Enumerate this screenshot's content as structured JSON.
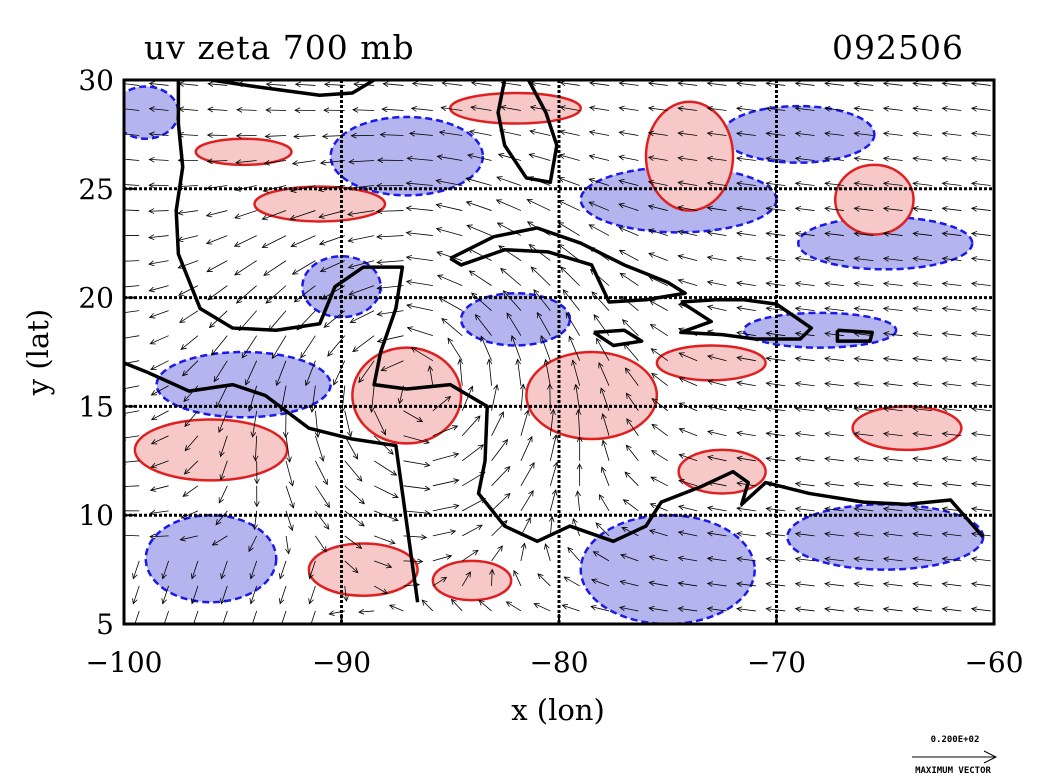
{
  "title_left": "uv zeta 700 mb",
  "title_right": "092506",
  "reference_vector": {
    "magnitude_label": "0.200E+02",
    "caption": "MAXIMUM VECTOR"
  },
  "colors": {
    "positive_vorticity_fill": "#f7c8c8",
    "positive_vorticity_line": "#e02020",
    "negative_vorticity_fill": "#b4b4ee",
    "negative_vorticity_line": "#1a1aee",
    "coastline": "#000000",
    "grid": "#000000",
    "vectors": "#000000"
  },
  "chart_data": {
    "type": "contour",
    "variable": "uv zeta 700 mb",
    "date_code": "092506",
    "xlabel": "x (lon)",
    "ylabel": "y (lat)",
    "xlim": [
      -100,
      -60
    ],
    "ylim": [
      5,
      30
    ],
    "x_ticks": [
      -100,
      -90,
      -80,
      -70,
      -60
    ],
    "y_ticks": [
      5,
      10,
      15,
      20,
      25,
      30
    ],
    "grid": true,
    "overlay": "wind vectors",
    "positive_regions": [
      {
        "lon": -87,
        "lat": 15.5,
        "rx": 2.5,
        "ry": 2.2
      },
      {
        "lon": -96,
        "lat": 13.0,
        "rx": 3.5,
        "ry": 1.4
      },
      {
        "lon": -82,
        "lat": 28.7,
        "rx": 3.0,
        "ry": 0.7
      },
      {
        "lon": -91,
        "lat": 24.3,
        "rx": 3.0,
        "ry": 0.8
      },
      {
        "lon": -94.5,
        "lat": 26.7,
        "rx": 2.2,
        "ry": 0.6
      },
      {
        "lon": -78.5,
        "lat": 15.5,
        "rx": 3.0,
        "ry": 2.0
      },
      {
        "lon": -73.0,
        "lat": 17.0,
        "rx": 2.5,
        "ry": 0.8
      },
      {
        "lon": -74.0,
        "lat": 26.5,
        "rx": 2.0,
        "ry": 2.5
      },
      {
        "lon": -65.5,
        "lat": 24.5,
        "rx": 1.8,
        "ry": 1.6
      },
      {
        "lon": -89,
        "lat": 7.5,
        "rx": 2.5,
        "ry": 1.2
      },
      {
        "lon": -84.0,
        "lat": 7.0,
        "rx": 1.8,
        "ry": 0.9
      },
      {
        "lon": -64.0,
        "lat": 14.0,
        "rx": 2.5,
        "ry": 1.0
      },
      {
        "lon": -72.5,
        "lat": 12.0,
        "rx": 2.0,
        "ry": 1.0
      }
    ],
    "negative_regions": [
      {
        "lon": -87,
        "lat": 26.5,
        "rx": 3.5,
        "ry": 1.8
      },
      {
        "lon": -74.5,
        "lat": 24.5,
        "rx": 4.5,
        "ry": 1.5
      },
      {
        "lon": -69,
        "lat": 27.5,
        "rx": 3.5,
        "ry": 1.3
      },
      {
        "lon": -65,
        "lat": 22.5,
        "rx": 4.0,
        "ry": 1.2
      },
      {
        "lon": -75.0,
        "lat": 7.5,
        "rx": 4.0,
        "ry": 2.5
      },
      {
        "lon": -94.5,
        "lat": 16.0,
        "rx": 4.0,
        "ry": 1.5
      },
      {
        "lon": -96.0,
        "lat": 8.0,
        "rx": 3.0,
        "ry": 2.0
      },
      {
        "lon": -82.0,
        "lat": 19.0,
        "rx": 2.5,
        "ry": 1.2
      },
      {
        "lon": -65.0,
        "lat": 9.0,
        "rx": 4.5,
        "ry": 1.5
      },
      {
        "lon": -68.0,
        "lat": 18.5,
        "rx": 3.5,
        "ry": 0.8
      },
      {
        "lon": -90.0,
        "lat": 20.5,
        "rx": 1.8,
        "ry": 1.4
      },
      {
        "lon": -99.0,
        "lat": 28.5,
        "rx": 1.5,
        "ry": 1.2
      }
    ],
    "coastlines": [
      [
        [
          -97.5,
          30
        ],
        [
          -97.5,
          28
        ],
        [
          -97.3,
          26
        ],
        [
          -97.6,
          24
        ],
        [
          -97.5,
          22
        ],
        [
          -96.5,
          19.5
        ],
        [
          -95,
          18.6
        ],
        [
          -93,
          18.5
        ],
        [
          -91,
          18.8
        ],
        [
          -90.3,
          20.5
        ],
        [
          -89,
          21.4
        ],
        [
          -87.2,
          21.4
        ],
        [
          -87.5,
          19.5
        ],
        [
          -88.2,
          17.5
        ],
        [
          -88.5,
          16
        ],
        [
          -87,
          15.8
        ],
        [
          -85,
          16
        ],
        [
          -83.3,
          15
        ],
        [
          -83.4,
          12.5
        ],
        [
          -83.7,
          11
        ],
        [
          -82.5,
          9.5
        ],
        [
          -81,
          8.8
        ],
        [
          -79.5,
          9.5
        ],
        [
          -77.5,
          8.8
        ],
        [
          -76,
          9.5
        ],
        [
          -75.3,
          10.6
        ],
        [
          -73.5,
          11.3
        ],
        [
          -72,
          12
        ],
        [
          -71.3,
          11.5
        ],
        [
          -71.6,
          10.5
        ],
        [
          -70.5,
          11.5
        ],
        [
          -68.5,
          11
        ],
        [
          -66,
          10.6
        ],
        [
          -64,
          10.5
        ],
        [
          -62,
          10.7
        ],
        [
          -60.5,
          9
        ]
      ],
      [
        [
          -86.5,
          6
        ],
        [
          -87.5,
          13.2
        ],
        [
          -89.5,
          13.5
        ],
        [
          -91.5,
          14
        ],
        [
          -93.5,
          15.5
        ],
        [
          -95,
          16
        ],
        [
          -97,
          15.7
        ],
        [
          -99,
          16.6
        ],
        [
          -100,
          17
        ]
      ],
      [
        [
          -82.5,
          30
        ],
        [
          -82.8,
          28.5
        ],
        [
          -82.5,
          27
        ],
        [
          -81.5,
          25.5
        ],
        [
          -80.4,
          25.3
        ],
        [
          -80.1,
          27
        ],
        [
          -80.6,
          28.5
        ],
        [
          -81.4,
          30
        ]
      ],
      [
        [
          -85,
          21.8
        ],
        [
          -83,
          22.8
        ],
        [
          -81,
          23.2
        ],
        [
          -79,
          22.5
        ],
        [
          -77,
          21.5
        ],
        [
          -75,
          20.7
        ],
        [
          -74.2,
          20.2
        ],
        [
          -76,
          19.9
        ],
        [
          -77.7,
          19.8
        ],
        [
          -78.5,
          21.5
        ],
        [
          -80.5,
          22.1
        ],
        [
          -82.5,
          22.2
        ],
        [
          -84.5,
          21.5
        ],
        [
          -85,
          21.8
        ]
      ],
      [
        [
          -74.4,
          19.8
        ],
        [
          -72.8,
          19.9
        ],
        [
          -71.5,
          19.9
        ],
        [
          -70,
          19.7
        ],
        [
          -68.4,
          18.6
        ],
        [
          -68.9,
          18.1
        ],
        [
          -71,
          18.1
        ],
        [
          -72.5,
          18.3
        ],
        [
          -74.4,
          18.4
        ],
        [
          -73,
          18.9
        ],
        [
          -74.4,
          19.8
        ]
      ],
      [
        [
          -78.4,
          18.4
        ],
        [
          -77,
          18.5
        ],
        [
          -76.2,
          18
        ],
        [
          -77.5,
          17.8
        ],
        [
          -78.4,
          18.4
        ]
      ],
      [
        [
          -67.2,
          18.5
        ],
        [
          -65.6,
          18.4
        ],
        [
          -65.7,
          18
        ],
        [
          -67.2,
          18
        ],
        [
          -67.2,
          18.5
        ]
      ],
      [
        [
          -96,
          30
        ],
        [
          -94,
          29.7
        ],
        [
          -91,
          29.3
        ],
        [
          -89.5,
          29.4
        ],
        [
          -88.5,
          30
        ]
      ]
    ]
  }
}
